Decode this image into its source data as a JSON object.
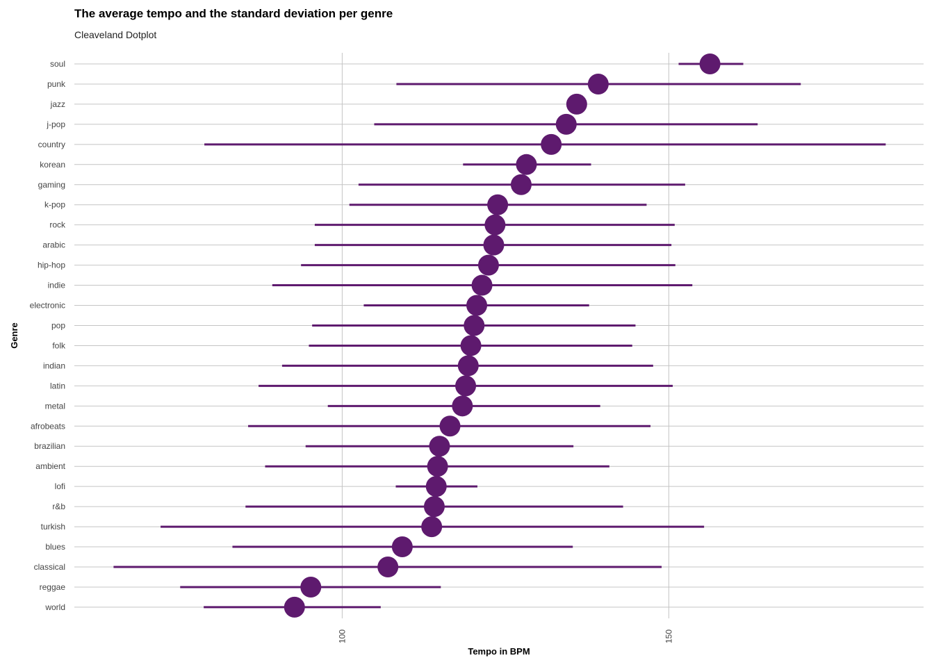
{
  "chart_data": {
    "type": "scatter",
    "variant": "cleveland-dotplot-with-sd",
    "title": "The average tempo and the standard deviation per genre",
    "subtitle": "Cleaveland Dotplot",
    "xlabel": "Tempo in BPM",
    "ylabel": "Genre",
    "xlim": [
      59,
      189
    ],
    "xticks": [
      100,
      150
    ],
    "grid": true,
    "legend": "none",
    "color": "#5e1a6e",
    "points": [
      {
        "genre": "soul",
        "mean": 156.3,
        "low": 151.5,
        "high": 161.4
      },
      {
        "genre": "punk",
        "mean": 139.2,
        "low": 108.3,
        "high": 170.2
      },
      {
        "genre": "jazz",
        "mean": 135.9,
        "low": null,
        "high": null
      },
      {
        "genre": "j-pop",
        "mean": 134.3,
        "low": 104.9,
        "high": 163.6
      },
      {
        "genre": "country",
        "mean": 132.0,
        "low": 78.9,
        "high": 183.2
      },
      {
        "genre": "korean",
        "mean": 128.2,
        "low": 118.5,
        "high": 138.1
      },
      {
        "genre": "gaming",
        "mean": 127.4,
        "low": 102.5,
        "high": 152.5
      },
      {
        "genre": "k-pop",
        "mean": 123.8,
        "low": 101.1,
        "high": 146.6
      },
      {
        "genre": "rock",
        "mean": 123.4,
        "low": 95.8,
        "high": 150.9
      },
      {
        "genre": "arabic",
        "mean": 123.2,
        "low": 95.8,
        "high": 150.4
      },
      {
        "genre": "hip-hop",
        "mean": 122.4,
        "low": 93.7,
        "high": 151.0
      },
      {
        "genre": "indie",
        "mean": 121.4,
        "low": 89.3,
        "high": 153.6
      },
      {
        "genre": "electronic",
        "mean": 120.6,
        "low": 103.3,
        "high": 137.8
      },
      {
        "genre": "pop",
        "mean": 120.2,
        "low": 95.4,
        "high": 144.9
      },
      {
        "genre": "folk",
        "mean": 119.7,
        "low": 94.9,
        "high": 144.4
      },
      {
        "genre": "indian",
        "mean": 119.3,
        "low": 90.8,
        "high": 147.6
      },
      {
        "genre": "latin",
        "mean": 118.9,
        "low": 87.2,
        "high": 150.6
      },
      {
        "genre": "metal",
        "mean": 118.4,
        "low": 97.8,
        "high": 139.5
      },
      {
        "genre": "afrobeats",
        "mean": 116.5,
        "low": 85.6,
        "high": 147.2
      },
      {
        "genre": "brazilian",
        "mean": 114.9,
        "low": 94.4,
        "high": 135.4
      },
      {
        "genre": "ambient",
        "mean": 114.6,
        "low": 88.2,
        "high": 140.9
      },
      {
        "genre": "lofi",
        "mean": 114.4,
        "low": 108.2,
        "high": 120.7
      },
      {
        "genre": "r&b",
        "mean": 114.1,
        "low": 85.2,
        "high": 143.0
      },
      {
        "genre": "turkish",
        "mean": 113.7,
        "low": 72.2,
        "high": 155.4
      },
      {
        "genre": "blues",
        "mean": 109.2,
        "low": 83.2,
        "high": 135.3
      },
      {
        "genre": "classical",
        "mean": 107.0,
        "low": 65.0,
        "high": 148.9
      },
      {
        "genre": "reggae",
        "mean": 95.2,
        "low": 75.2,
        "high": 115.1
      },
      {
        "genre": "world",
        "mean": 92.7,
        "low": 78.8,
        "high": 105.9
      }
    ]
  }
}
